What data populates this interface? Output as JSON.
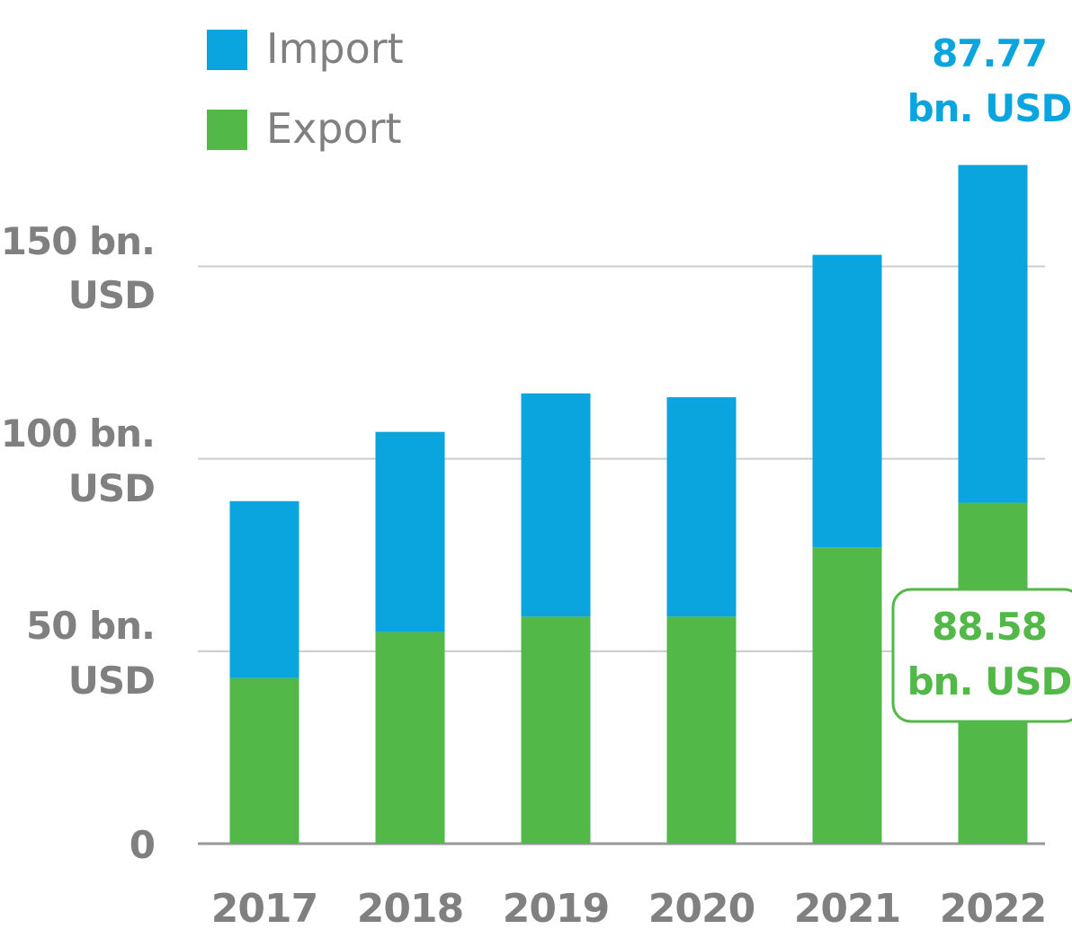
{
  "chart_data": {
    "type": "bar",
    "stacked": true,
    "categories": [
      "2017",
      "2018",
      "2019",
      "2020",
      "2021",
      "2022"
    ],
    "series": [
      {
        "name": "Export",
        "color": "#52b848",
        "values": [
          43,
          55,
          59,
          59,
          77,
          88.58
        ],
        "value_labels": [
          null,
          null,
          null,
          null,
          null,
          "88.58\nbn. USD"
        ]
      },
      {
        "name": "Import",
        "color": "#0aa5de",
        "values": [
          46,
          52,
          58,
          57,
          76,
          87.77
        ],
        "value_labels": [
          null,
          null,
          null,
          null,
          null,
          "87.77\nbn. USD"
        ]
      }
    ],
    "ylim": [
      0,
      180
    ],
    "yticks": [
      {
        "value": 0,
        "label": "0"
      },
      {
        "value": 50,
        "label": "50 bn.\nUSD"
      },
      {
        "value": 100,
        "label": "100 bn.\nUSD"
      },
      {
        "value": 150,
        "label": "150 bn.\nUSD"
      }
    ],
    "grid": true,
    "legend": "top-left"
  }
}
